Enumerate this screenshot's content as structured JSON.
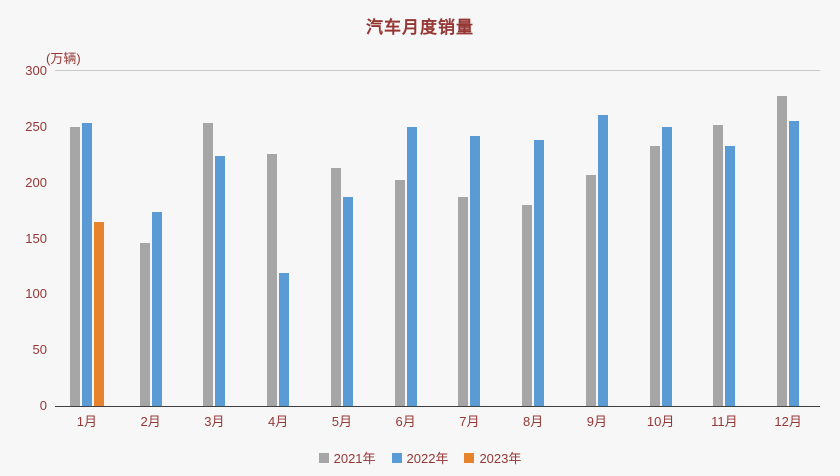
{
  "chart_data": {
    "type": "bar",
    "title": "汽车月度销量",
    "unit_label": "(万辆)",
    "categories": [
      "1月",
      "2月",
      "3月",
      "4月",
      "5月",
      "6月",
      "7月",
      "8月",
      "9月",
      "10月",
      "11月",
      "12月"
    ],
    "series": [
      {
        "name": "2021年",
        "color": "#a6a6a6",
        "values": [
          250,
          146,
          253,
          226,
          213,
          202,
          187,
          180,
          207,
          233,
          252,
          278
        ]
      },
      {
        "name": "2022年",
        "color": "#5b9bd5",
        "values": [
          253,
          174,
          224,
          119,
          187,
          250,
          242,
          238,
          261,
          250,
          233,
          255
        ]
      },
      {
        "name": "2023年",
        "color": "#e8832d",
        "values": [
          165,
          null,
          null,
          null,
          null,
          null,
          null,
          null,
          null,
          null,
          null,
          null
        ]
      }
    ],
    "ylim": [
      0,
      300
    ],
    "yticks": [
      0,
      50,
      100,
      150,
      200,
      250,
      300
    ],
    "grid": false,
    "legend_position": "bottom"
  },
  "colors": {
    "background": "#f7f7f7",
    "text": "#953735",
    "axis": "#404040"
  }
}
